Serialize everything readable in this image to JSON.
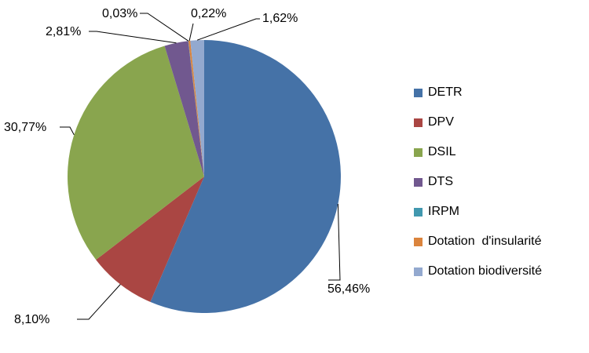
{
  "chart_data": {
    "type": "pie",
    "title": "",
    "categories": [
      "DETR",
      "DPV",
      "DSIL",
      "DTS",
      "IRPM",
      "Dotation  d'insularité",
      "Dotation biodiversité"
    ],
    "values": [
      56.46,
      8.1,
      30.77,
      2.81,
      0.03,
      0.22,
      1.62
    ],
    "value_labels": [
      "56,46%",
      "8,10%",
      "30,77%",
      "2,81%",
      "0,03%",
      "0,22%",
      "1,62%"
    ],
    "colors": [
      "#4572A7",
      "#AA4643",
      "#89A54E",
      "#71588F",
      "#4198AF",
      "#DB843D",
      "#93A9CF"
    ],
    "start_angle_deg": 0,
    "direction": "clockwise",
    "legend_position": "right"
  }
}
